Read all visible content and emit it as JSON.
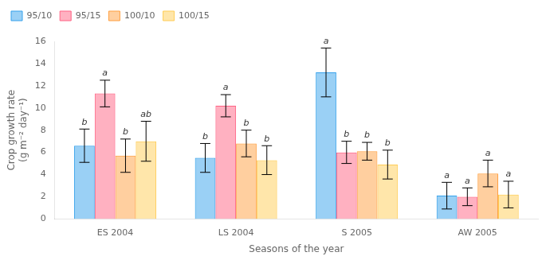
{
  "chart_data": {
    "type": "bar",
    "categories": [
      "ES 2004",
      "LS 2004",
      "S 2005",
      "AW 2005"
    ],
    "series": [
      {
        "name": "95/10",
        "values": [
          6.6,
          5.5,
          13.2,
          2.1
        ],
        "errors": [
          1.5,
          1.3,
          2.2,
          1.2
        ],
        "annotations": [
          "b",
          "b",
          "a",
          "a"
        ]
      },
      {
        "name": "95/15",
        "values": [
          11.3,
          10.2,
          6.0,
          2.0
        ],
        "errors": [
          1.2,
          1.0,
          1.0,
          0.8
        ],
        "annotations": [
          "a",
          "a",
          "b",
          "a"
        ]
      },
      {
        "name": "100/10",
        "values": [
          5.7,
          6.8,
          6.1,
          4.1
        ],
        "errors": [
          1.5,
          1.2,
          0.8,
          1.2
        ],
        "annotations": [
          "b",
          "b",
          "b",
          "a"
        ]
      },
      {
        "name": "100/15",
        "values": [
          7.0,
          5.3,
          4.9,
          2.2
        ],
        "errors": [
          1.8,
          1.3,
          1.3,
          1.2
        ],
        "annotations": [
          "ab",
          "b",
          "b",
          "a"
        ]
      }
    ],
    "xlabel": "Seasons of the year",
    "ylabel": "Crop growth rate\n(g m⁻² day⁻¹)",
    "ylim": [
      0,
      16
    ],
    "yticks": [
      0,
      2,
      4,
      6,
      8,
      10,
      12,
      14,
      16
    ],
    "grid": false,
    "legend": "upper left"
  }
}
